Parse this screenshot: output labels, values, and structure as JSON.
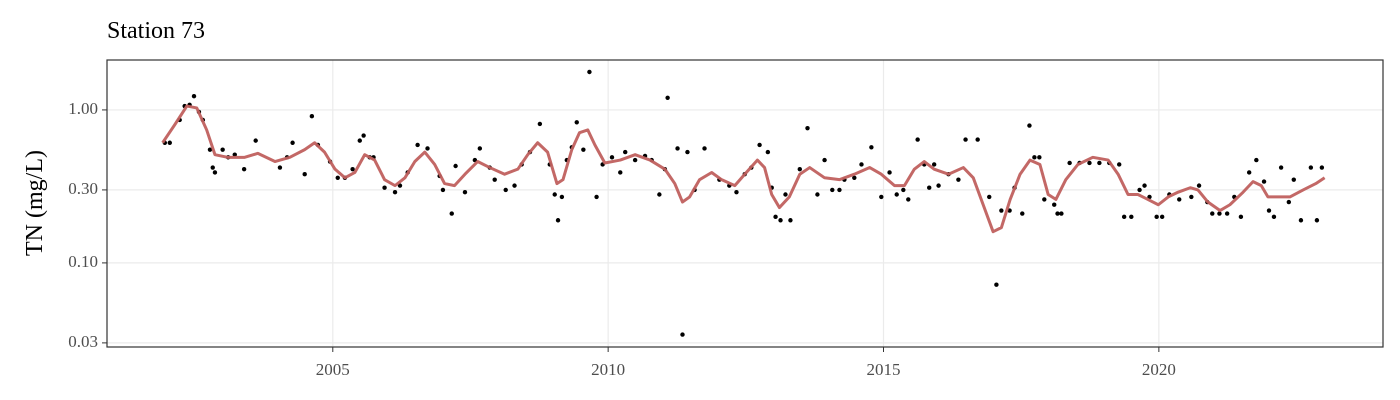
{
  "chart_data": {
    "type": "scatter",
    "title": "Station 73",
    "ylabel": "TN (mg/L)",
    "yscale": "log",
    "grid": true,
    "xlim": [
      2000.9,
      2024.07
    ],
    "ylim": [
      0.0282,
      2.12
    ],
    "xticks": [
      2005,
      2010,
      2015,
      2020
    ],
    "yticks": [
      {
        "value": 1,
        "label": "1.00"
      },
      {
        "value": 0.3,
        "label": "0.30"
      },
      {
        "value": 0.1,
        "label": "0.10"
      },
      {
        "value": 0.03,
        "label": "0.03"
      }
    ],
    "series": [
      {
        "type": "scatter",
        "color": "#000000",
        "x": [
          2001.95,
          2002.04,
          2002.22,
          2002.31,
          2002.4,
          2002.48,
          2002.57,
          2002.64,
          2002.77,
          2002.82,
          2002.86,
          2003.0,
          2003.1,
          2003.22,
          2003.39,
          2003.6,
          2004.04,
          2004.17,
          2004.27,
          2004.49,
          2004.62,
          2004.73,
          2004.95,
          2005.09,
          2005.22,
          2005.36,
          2005.49,
          2005.56,
          2005.67,
          2005.74,
          2005.94,
          2006.13,
          2006.22,
          2006.36,
          2006.54,
          2006.72,
          2006.94,
          2007.0,
          2007.16,
          2007.23,
          2007.4,
          2007.58,
          2007.67,
          2007.85,
          2007.94,
          2008.14,
          2008.3,
          2008.43,
          2008.58,
          2008.76,
          2008.94,
          2009.03,
          2009.09,
          2009.16,
          2009.25,
          2009.34,
          2009.43,
          2009.55,
          2009.66,
          2009.79,
          2009.9,
          2010.07,
          2010.22,
          2010.31,
          2010.49,
          2010.67,
          2010.79,
          2010.93,
          2011.03,
          2011.08,
          2011.26,
          2011.35,
          2011.44,
          2011.57,
          2011.75,
          2012.02,
          2012.2,
          2012.33,
          2012.48,
          2012.6,
          2012.75,
          2012.9,
          2012.97,
          2013.04,
          2013.13,
          2013.22,
          2013.31,
          2013.48,
          2013.62,
          2013.8,
          2013.93,
          2014.07,
          2014.2,
          2014.29,
          2014.47,
          2014.6,
          2014.78,
          2014.96,
          2015.11,
          2015.24,
          2015.36,
          2015.45,
          2015.62,
          2015.74,
          2015.83,
          2015.92,
          2016.0,
          2016.18,
          2016.36,
          2016.49,
          2016.71,
          2016.92,
          2017.05,
          2017.14,
          2017.29,
          2017.38,
          2017.52,
          2017.65,
          2017.74,
          2017.83,
          2017.92,
          2018.1,
          2018.16,
          2018.23,
          2018.38,
          2018.56,
          2018.74,
          2018.92,
          2019.1,
          2019.28,
          2019.37,
          2019.5,
          2019.65,
          2019.74,
          2019.83,
          2019.96,
          2020.06,
          2020.19,
          2020.37,
          2020.59,
          2020.73,
          2020.88,
          2020.97,
          2021.1,
          2021.24,
          2021.37,
          2021.49,
          2021.64,
          2021.77,
          2021.91,
          2022.0,
          2022.09,
          2022.22,
          2022.36,
          2022.45,
          2022.58,
          2022.76,
          2022.87,
          2022.96
        ],
        "values": [
          0.61,
          0.61,
          0.86,
          1.06,
          1.08,
          1.23,
          0.97,
          0.86,
          0.55,
          0.42,
          0.39,
          0.55,
          0.49,
          0.51,
          0.41,
          0.63,
          0.42,
          0.49,
          0.61,
          0.38,
          0.91,
          0.59,
          0.46,
          0.36,
          0.36,
          0.41,
          0.63,
          0.68,
          0.49,
          0.49,
          0.31,
          0.29,
          0.32,
          0.39,
          0.59,
          0.56,
          0.37,
          0.3,
          0.21,
          0.43,
          0.29,
          0.47,
          0.56,
          0.42,
          0.35,
          0.3,
          0.32,
          0.44,
          0.53,
          0.81,
          0.44,
          0.28,
          0.19,
          0.27,
          0.47,
          0.57,
          0.83,
          0.55,
          1.77,
          0.27,
          0.44,
          0.49,
          0.39,
          0.53,
          0.47,
          0.5,
          0.47,
          0.28,
          0.41,
          1.2,
          0.56,
          0.034,
          0.53,
          0.3,
          0.56,
          0.35,
          0.32,
          0.29,
          0.38,
          0.42,
          0.59,
          0.53,
          0.31,
          0.2,
          0.19,
          0.28,
          0.19,
          0.41,
          0.76,
          0.28,
          0.47,
          0.3,
          0.3,
          0.35,
          0.36,
          0.44,
          0.57,
          0.27,
          0.39,
          0.28,
          0.3,
          0.26,
          0.64,
          0.44,
          0.31,
          0.44,
          0.32,
          0.38,
          0.35,
          0.64,
          0.64,
          0.27,
          0.072,
          0.22,
          0.22,
          0.31,
          0.21,
          0.79,
          0.49,
          0.49,
          0.26,
          0.24,
          0.21,
          0.21,
          0.45,
          0.45,
          0.45,
          0.45,
          0.45,
          0.44,
          0.2,
          0.2,
          0.3,
          0.32,
          0.27,
          0.2,
          0.2,
          0.28,
          0.26,
          0.27,
          0.32,
          0.25,
          0.21,
          0.21,
          0.21,
          0.27,
          0.2,
          0.39,
          0.47,
          0.34,
          0.22,
          0.2,
          0.42,
          0.25,
          0.35,
          0.19,
          0.42,
          0.19,
          0.42
        ]
      },
      {
        "type": "line",
        "color": "#c0605e",
        "x": [
          2001.91,
          2002.13,
          2002.35,
          2002.53,
          2002.71,
          2002.86,
          2003.09,
          2003.4,
          2003.64,
          2003.95,
          2004.22,
          2004.49,
          2004.67,
          2004.85,
          2005.04,
          2005.22,
          2005.4,
          2005.58,
          2005.76,
          2005.94,
          2006.13,
          2006.31,
          2006.49,
          2006.67,
          2006.85,
          2007.03,
          2007.21,
          2007.4,
          2007.63,
          2007.85,
          2008.12,
          2008.36,
          2008.54,
          2008.72,
          2008.9,
          2009.07,
          2009.18,
          2009.34,
          2009.48,
          2009.63,
          2009.76,
          2009.94,
          2010.22,
          2010.49,
          2010.76,
          2011.03,
          2011.21,
          2011.35,
          2011.48,
          2011.66,
          2011.88,
          2012.06,
          2012.3,
          2012.48,
          2012.71,
          2012.84,
          2012.97,
          2013.11,
          2013.29,
          2013.48,
          2013.66,
          2013.93,
          2014.2,
          2014.47,
          2014.75,
          2014.96,
          2015.2,
          2015.38,
          2015.56,
          2015.74,
          2015.92,
          2016.18,
          2016.45,
          2016.63,
          2016.81,
          2016.99,
          2017.14,
          2017.3,
          2017.48,
          2017.66,
          2017.84,
          2017.99,
          2018.13,
          2018.31,
          2018.53,
          2018.8,
          2019.08,
          2019.26,
          2019.44,
          2019.62,
          2019.8,
          2019.99,
          2020.17,
          2020.35,
          2020.57,
          2020.71,
          2020.89,
          2021.11,
          2021.29,
          2021.53,
          2021.71,
          2021.86,
          2021.98,
          2022.16,
          2022.38,
          2022.62,
          2022.85,
          2023.01
        ],
        "values": [
          0.61,
          0.8,
          1.06,
          1.03,
          0.74,
          0.51,
          0.49,
          0.49,
          0.52,
          0.46,
          0.49,
          0.55,
          0.61,
          0.53,
          0.41,
          0.36,
          0.39,
          0.51,
          0.47,
          0.35,
          0.32,
          0.36,
          0.46,
          0.53,
          0.44,
          0.33,
          0.32,
          0.38,
          0.46,
          0.42,
          0.38,
          0.41,
          0.51,
          0.61,
          0.53,
          0.33,
          0.35,
          0.55,
          0.71,
          0.74,
          0.59,
          0.45,
          0.47,
          0.51,
          0.47,
          0.41,
          0.33,
          0.25,
          0.27,
          0.35,
          0.39,
          0.35,
          0.32,
          0.38,
          0.47,
          0.42,
          0.28,
          0.23,
          0.27,
          0.38,
          0.42,
          0.36,
          0.35,
          0.38,
          0.42,
          0.38,
          0.32,
          0.32,
          0.41,
          0.46,
          0.41,
          0.38,
          0.42,
          0.36,
          0.24,
          0.16,
          0.17,
          0.26,
          0.38,
          0.47,
          0.44,
          0.28,
          0.26,
          0.35,
          0.44,
          0.49,
          0.47,
          0.38,
          0.28,
          0.28,
          0.26,
          0.24,
          0.27,
          0.29,
          0.31,
          0.3,
          0.25,
          0.22,
          0.24,
          0.29,
          0.34,
          0.32,
          0.27,
          0.27,
          0.27,
          0.3,
          0.33,
          0.36
        ]
      }
    ]
  }
}
